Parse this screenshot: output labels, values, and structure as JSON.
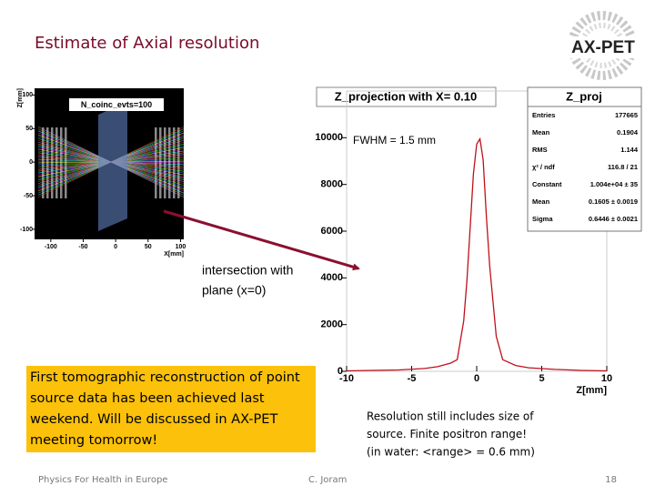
{
  "title": "Estimate of Axial resolution",
  "logo": "AX-PET",
  "simulation_plot": {
    "title": "N_coinc_evts=100",
    "xlabel": "X[mm]",
    "ylabel": "Z[mm]",
    "xlim": [
      -125,
      105
    ],
    "ylim": [
      -115,
      110
    ],
    "xticks": [
      -100,
      -50,
      0,
      50,
      100
    ],
    "yticks": [
      -100,
      -50,
      0,
      50,
      100
    ]
  },
  "chart_data": {
    "type": "line",
    "title": "Z_projection with X= 0.10",
    "xlabel": "Z[mm]",
    "annotation": "FWHM = 1.5 mm",
    "x": [
      -10,
      -8,
      -6,
      -4,
      -3,
      -2,
      -1.5,
      -1,
      -0.75,
      -0.5,
      -0.25,
      0,
      0.25,
      0.5,
      0.75,
      1,
      1.5,
      2,
      3,
      4,
      6,
      8,
      10
    ],
    "values": [
      20,
      40,
      60,
      120,
      200,
      350,
      500,
      2150,
      3900,
      6200,
      8450,
      9730,
      9950,
      9050,
      6600,
      4500,
      1500,
      500,
      250,
      150,
      80,
      40,
      20
    ],
    "color": "#c0101a",
    "xlim": [
      -10,
      10
    ],
    "ylim": [
      0,
      12000
    ],
    "xticks": [
      -10,
      -5,
      0,
      5,
      10
    ],
    "yticks": [
      0,
      2000,
      4000,
      6000,
      8000,
      10000
    ],
    "stats": {
      "title": "Z_proj",
      "rows": [
        [
          "Entries",
          "177665"
        ],
        [
          "Mean",
          "0.1904"
        ],
        [
          "RMS",
          "1.144"
        ],
        [
          "χ² / ndf",
          "116.8 / 21"
        ],
        [
          "Constant",
          "1.004e+04 ± 35"
        ],
        [
          "Mean",
          "0.1605 ± 0.0019"
        ],
        [
          "Sigma",
          "0.6446 ± 0.0021"
        ]
      ]
    }
  },
  "arrow_label": [
    "intersection with",
    "plane (x=0)"
  ],
  "highlight_box": [
    "First tomographic reconstruction of point",
    "source data has been achieved last",
    "weekend. Will be discussed in AX-PET",
    "meeting tomorrow!"
  ],
  "note": [
    "Resolution still includes size of",
    "source. Finite positron range!",
    "(in water: <range> = 0.6 mm)"
  ],
  "footer": {
    "left": "Physics For Health in Europe",
    "center": "C. Joram",
    "page": "18"
  }
}
